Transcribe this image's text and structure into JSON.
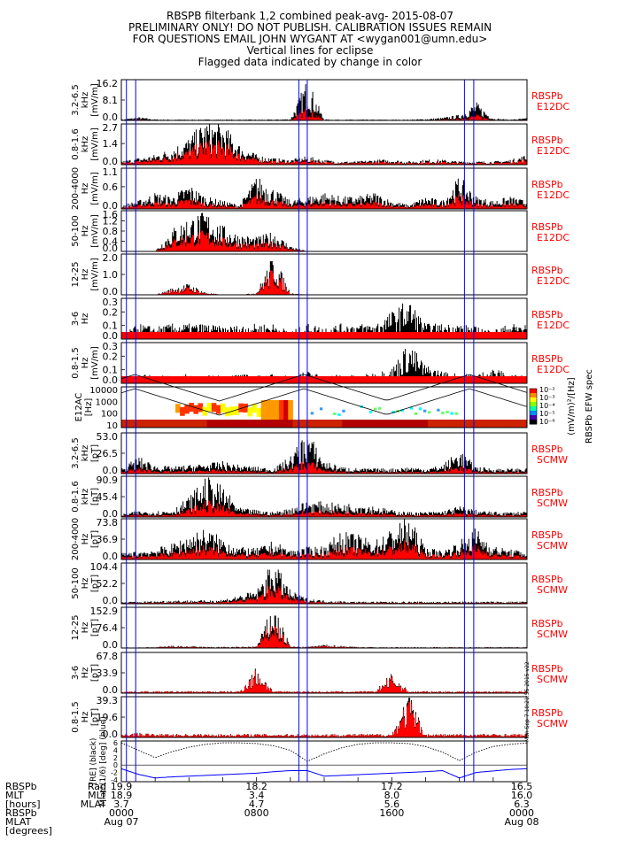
{
  "header": {
    "lines": [
      "RBSPB filterbank 1,2 combined peak-avg- 2015-08-07",
      "PRELIMINARY ONLY! DO NOT PUBLISH. CALIBRATION ISSUES REMAIN",
      "FOR QUESTIONS EMAIL JOHN WYGANT AT <wygan001@umn.edu>",
      "Vertical lines for eclipse",
      "Flagged data indicated by change in color"
    ]
  },
  "colors": {
    "signal": "#000000",
    "flagged": "#ff0000",
    "eclipse": "#0000ff",
    "label_red": "#ff0000",
    "mlat_trace": "#0000ff"
  },
  "eclipse_hours": [
    0.3,
    0.85,
    10.5,
    11.0,
    20.3,
    20.85
  ],
  "chart_data": [
    {
      "type": "line",
      "id": "e1",
      "ylabel": [
        "3.2-6.5",
        "kHz",
        "[mV/m]"
      ],
      "ticks": [
        "16.2",
        "8.1",
        "0.0"
      ],
      "right": [
        "RBSPb",
        "E12DC"
      ],
      "ylim": [
        0,
        16.2
      ],
      "x": [
        0,
        1,
        2,
        3,
        4,
        5,
        6,
        7,
        8,
        9,
        10,
        11,
        12,
        13,
        14,
        15,
        16,
        17,
        18,
        19,
        20,
        21,
        22,
        23,
        24
      ],
      "values": [
        0.3,
        1.2,
        0.4,
        0.3,
        0.3,
        0.3,
        0.3,
        0.3,
        0.3,
        0.3,
        0.5,
        15.0,
        0.4,
        0.3,
        0.3,
        0.3,
        0.3,
        0.3,
        0.5,
        1.0,
        2.0,
        6.5,
        0.8,
        0.3,
        0.8
      ],
      "flag": 0.05
    },
    {
      "type": "line",
      "id": "e2",
      "ylabel": [
        "0.8-1.6",
        "kHz",
        "[mV/m]"
      ],
      "ticks": [
        "2.7",
        "1.4",
        "0.0"
      ],
      "right": [
        "RBSPb",
        "E12DC"
      ],
      "ylim": [
        0,
        2.7
      ],
      "x": [
        0,
        1,
        2,
        3,
        4,
        5,
        6,
        7,
        8,
        9,
        10,
        11,
        12,
        13,
        14,
        15,
        16,
        17,
        18,
        19,
        20,
        21,
        22,
        23,
        24
      ],
      "values": [
        0.2,
        0.4,
        0.6,
        1.0,
        1.6,
        2.6,
        2.4,
        1.2,
        0.6,
        0.4,
        0.3,
        0.5,
        0.3,
        0.2,
        0.2,
        0.3,
        0.3,
        0.2,
        0.3,
        0.3,
        0.2,
        0.2,
        0.2,
        0.3,
        0.6
      ],
      "flag": 0.5
    },
    {
      "type": "line",
      "id": "e3",
      "ylabel": [
        "200-4000",
        "Hz",
        "[mV/m]"
      ],
      "ticks": [
        "1.1",
        "0.6",
        "0.0"
      ],
      "right": [
        "RBSPb",
        "E12DC"
      ],
      "ylim": [
        0,
        1.1
      ],
      "x": [
        0,
        1,
        2,
        3,
        4,
        5,
        6,
        7,
        8,
        9,
        10,
        11,
        12,
        13,
        14,
        15,
        16,
        17,
        18,
        19,
        20,
        21,
        22,
        23,
        24
      ],
      "values": [
        0.1,
        0.2,
        0.4,
        0.3,
        0.6,
        0.3,
        0.2,
        0.1,
        0.8,
        0.5,
        0.2,
        0.3,
        0.4,
        0.3,
        0.3,
        0.4,
        0.2,
        0.1,
        0.3,
        0.2,
        0.8,
        0.3,
        0.2,
        0.3,
        0.2
      ],
      "flag": 0.3
    },
    {
      "type": "line",
      "id": "e4",
      "ylabel": [
        "50-100",
        "Hz",
        "[mV/m]"
      ],
      "ticks": [
        "1.6",
        "1.2",
        "0.8",
        "0.4",
        "0.0"
      ],
      "right": [
        "RBSPb",
        "E12DC"
      ],
      "ylim": [
        0,
        1.6
      ],
      "x": [
        0,
        1,
        2,
        3,
        4,
        5,
        6,
        7,
        8,
        9,
        10,
        11,
        12,
        13,
        14,
        15,
        16,
        17,
        18,
        19,
        20,
        21,
        22,
        23,
        24
      ],
      "values": [
        0.0,
        0.0,
        0.0,
        0.8,
        1.2,
        1.4,
        0.9,
        0.6,
        0.5,
        0.7,
        0.2,
        0.0,
        0.0,
        0.0,
        0.0,
        0.0,
        0.0,
        0.0,
        0.0,
        0.0,
        0.0,
        0.0,
        0.0,
        0.0,
        0.0
      ],
      "flag": 0.4
    },
    {
      "type": "line",
      "id": "e5",
      "ylabel": [
        "12-25",
        "Hz",
        "[mV/m]"
      ],
      "ticks": [
        "2.0",
        "1.0",
        "0.0"
      ],
      "right": [
        "RBSPb",
        "E12DC"
      ],
      "ylim": [
        0,
        2.0
      ],
      "x": [
        0,
        1,
        2,
        3,
        4,
        5,
        6,
        7,
        8,
        9,
        10,
        11,
        12,
        13,
        14,
        15,
        16,
        17,
        18,
        19,
        20,
        21,
        22,
        23,
        24
      ],
      "values": [
        0.0,
        0.0,
        0.0,
        0.3,
        0.5,
        0.1,
        0.0,
        0.0,
        0.1,
        1.8,
        0.1,
        0.0,
        0.0,
        0.0,
        0.0,
        0.0,
        0.0,
        0.0,
        0.0,
        0.0,
        0.0,
        0.0,
        0.0,
        0.0,
        0.0
      ],
      "flag": 0.7
    },
    {
      "type": "line",
      "id": "e6",
      "ylabel": [
        "3-6",
        "Hz"
      ],
      "ticks": [
        "0.3",
        "0.2",
        "0.1",
        "0.0"
      ],
      "right": [
        "RBSPb",
        "E12DC"
      ],
      "ylim": [
        0,
        0.3
      ],
      "x": [
        0,
        1,
        2,
        3,
        4,
        5,
        6,
        7,
        8,
        9,
        10,
        11,
        12,
        13,
        14,
        15,
        16,
        17,
        18,
        19,
        20,
        21,
        22,
        23,
        24
      ],
      "values": [
        0.02,
        0.1,
        0.08,
        0.1,
        0.1,
        0.1,
        0.08,
        0.09,
        0.1,
        0.1,
        0.05,
        0.1,
        0.08,
        0.1,
        0.1,
        0.1,
        0.18,
        0.26,
        0.1,
        0.1,
        0.1,
        0.08,
        0.06,
        0.1,
        0.1
      ],
      "flag": 0.0
    },
    {
      "type": "line",
      "id": "e7",
      "ylabel": [
        "0.8-1.5",
        "Hz",
        "[mV/m]"
      ],
      "ticks": [
        "0.3",
        "0.2",
        "0.1",
        "0.0"
      ],
      "right": [
        "RBSPb",
        "E12DC"
      ],
      "ylim": [
        0,
        0.3
      ],
      "x": [
        0,
        1,
        2,
        3,
        4,
        5,
        6,
        7,
        8,
        9,
        10,
        11,
        12,
        13,
        14,
        15,
        16,
        17,
        18,
        19,
        20,
        21,
        22,
        23,
        24
      ],
      "values": [
        0.02,
        0.06,
        0.05,
        0.05,
        0.06,
        0.05,
        0.05,
        0.06,
        0.05,
        0.06,
        0.05,
        0.08,
        0.05,
        0.06,
        0.05,
        0.07,
        0.1,
        0.27,
        0.12,
        0.08,
        0.06,
        0.06,
        0.1,
        0.06,
        0.05
      ],
      "flag": 0.0
    },
    {
      "type": "heatmap",
      "id": "spec",
      "ylabel": [
        "E12AC",
        "[Hz]"
      ],
      "ticks": [
        "10000",
        "1000",
        "100",
        "10"
      ],
      "colorbar_ticks": [
        "10⁻²",
        "10⁻³",
        "10⁻⁴",
        "10⁻⁵",
        "10⁻⁶"
      ],
      "colorbar_label": "(mV/m)²/[Hz]",
      "colorbar_title": "RBSPb EFW spec"
    },
    {
      "type": "line",
      "id": "b1",
      "ylabel": [
        "3.2-6.5",
        "kHz",
        "[pT]"
      ],
      "ticks": [
        "53.0",
        "26.5",
        "0.0"
      ],
      "right": [
        "RBSPb",
        "SCMW"
      ],
      "ylim": [
        0,
        53.0
      ],
      "x": [
        0,
        1,
        2,
        3,
        4,
        5,
        6,
        7,
        8,
        9,
        10,
        11,
        12,
        13,
        14,
        15,
        16,
        17,
        18,
        19,
        20,
        21,
        22,
        23,
        24
      ],
      "values": [
        6,
        20,
        10,
        8,
        10,
        12,
        14,
        10,
        8,
        6,
        20,
        50,
        15,
        8,
        6,
        6,
        6,
        8,
        6,
        10,
        28,
        8,
        6,
        6,
        6
      ],
      "flag": 0.1
    },
    {
      "type": "line",
      "id": "b2",
      "ylabel": [
        "0.8-1.6",
        "kHz",
        "[pT]"
      ],
      "ticks": [
        "90.9",
        "45.4",
        "0.0"
      ],
      "right": [
        "RBSPb",
        "SCMW"
      ],
      "ylim": [
        0,
        90.9
      ],
      "x": [
        0,
        1,
        2,
        3,
        4,
        5,
        6,
        7,
        8,
        9,
        10,
        11,
        12,
        13,
        14,
        15,
        16,
        17,
        18,
        19,
        20,
        21,
        22,
        23,
        24
      ],
      "values": [
        6,
        12,
        12,
        14,
        40,
        80,
        60,
        18,
        14,
        10,
        18,
        32,
        30,
        26,
        28,
        22,
        14,
        10,
        10,
        12,
        22,
        14,
        10,
        10,
        12
      ],
      "flag": 0.2
    },
    {
      "type": "line",
      "id": "b3",
      "ylabel": [
        "200-4000",
        "Hz",
        "[pT]"
      ],
      "ticks": [
        "73.8",
        "36.9",
        "0.0"
      ],
      "right": [
        "RBSPb",
        "SCMW"
      ],
      "ylim": [
        0,
        73.8
      ],
      "x": [
        0,
        1,
        2,
        3,
        4,
        5,
        6,
        7,
        8,
        9,
        10,
        11,
        12,
        13,
        14,
        15,
        16,
        17,
        18,
        19,
        20,
        21,
        22,
        23,
        24
      ],
      "values": [
        10,
        14,
        18,
        25,
        40,
        50,
        35,
        20,
        18,
        30,
        15,
        20,
        22,
        45,
        40,
        30,
        50,
        70,
        20,
        14,
        30,
        52,
        22,
        16,
        14
      ],
      "flag": 0.3
    },
    {
      "type": "line",
      "id": "b4",
      "ylabel": [
        "50-100",
        "Hz",
        "[pT]"
      ],
      "ticks": [
        "104.4",
        "52.2",
        "0.0"
      ],
      "right": [
        "RBSPb",
        "SCMW"
      ],
      "ylim": [
        0,
        104.4
      ],
      "x": [
        0,
        1,
        2,
        3,
        4,
        5,
        6,
        7,
        8,
        9,
        10,
        11,
        12,
        13,
        14,
        15,
        16,
        17,
        18,
        19,
        20,
        21,
        22,
        23,
        24
      ],
      "values": [
        4,
        5,
        6,
        8,
        8,
        8,
        10,
        20,
        30,
        100,
        30,
        12,
        8,
        6,
        5,
        5,
        5,
        5,
        5,
        5,
        5,
        5,
        5,
        5,
        5
      ],
      "flag": 0.35
    },
    {
      "type": "line",
      "id": "b5",
      "ylabel": [
        "12-25",
        "Hz",
        "[pT]"
      ],
      "ticks": [
        "152.9",
        "76.4",
        "0.0"
      ],
      "right": [
        "RBSPb",
        "SCMW"
      ],
      "ylim": [
        0,
        152.9
      ],
      "x": [
        0,
        1,
        2,
        3,
        4,
        5,
        6,
        7,
        8,
        9,
        10,
        11,
        12,
        13,
        14,
        15,
        16,
        17,
        18,
        19,
        20,
        21,
        22,
        23,
        24
      ],
      "values": [
        2,
        2,
        3,
        8,
        6,
        4,
        4,
        4,
        6,
        150,
        6,
        4,
        12,
        8,
        4,
        3,
        3,
        3,
        3,
        3,
        3,
        3,
        3,
        3,
        3
      ],
      "flag": 0.6
    },
    {
      "type": "line",
      "id": "b6",
      "ylabel": [
        "3-6",
        "Hz",
        "[pT]"
      ],
      "ticks": [
        "67.8",
        "33.9",
        "0.0"
      ],
      "right": [
        "RBSPb",
        "SCMW"
      ],
      "ylim": [
        0,
        67.8
      ],
      "x": [
        0,
        1,
        2,
        3,
        4,
        5,
        6,
        7,
        8,
        9,
        10,
        11,
        12,
        13,
        14,
        15,
        16,
        17,
        18,
        19,
        20,
        21,
        22,
        23,
        24
      ],
      "values": [
        3,
        3,
        3,
        3,
        3,
        3,
        3,
        3,
        40,
        3,
        3,
        3,
        3,
        3,
        3,
        3,
        30,
        3,
        3,
        3,
        3,
        3,
        3,
        3,
        3
      ],
      "flag": 1.0
    },
    {
      "type": "line",
      "id": "b7",
      "ylabel": [
        "0.8-1.5",
        "Hz",
        "[pT]"
      ],
      "ticks": [
        "39.3",
        "19.6",
        "0.0"
      ],
      "right": [
        "RBSPb",
        "SCMW"
      ],
      "ylim": [
        0,
        39.3
      ],
      "x": [
        0,
        1,
        2,
        3,
        4,
        5,
        6,
        7,
        8,
        9,
        10,
        11,
        12,
        13,
        14,
        15,
        16,
        17,
        18,
        19,
        20,
        21,
        22,
        23,
        24
      ],
      "values": [
        3,
        4,
        3,
        3,
        3,
        3,
        3,
        3,
        3,
        3,
        3,
        3,
        3,
        3,
        3,
        3,
        3,
        38,
        3,
        3,
        3,
        3,
        3,
        3,
        3
      ],
      "flag": 1.0
    },
    {
      "type": "line",
      "id": "orbit",
      "ylabel_left": "[RE] (black)",
      "ylabel_right": "Mlat*(1/6) [deg] (blue)",
      "ticks": [
        "6",
        "4",
        "2",
        "0",
        "-2",
        "-4"
      ],
      "ylim": [
        -4.5,
        6.5
      ],
      "x": [
        0,
        1,
        2,
        3,
        4,
        5,
        6,
        7,
        8,
        9,
        10,
        11,
        12,
        13,
        14,
        15,
        16,
        17,
        18,
        19,
        20,
        21,
        22,
        23,
        24
      ],
      "radius": [
        6,
        4,
        2,
        3.6,
        4.8,
        5.6,
        6,
        6,
        5.8,
        5.2,
        4,
        1,
        3,
        4.6,
        5.6,
        6,
        6,
        5.8,
        5,
        3.5,
        1.2,
        3.5,
        5,
        5.6,
        6
      ],
      "mlat_scaled": [
        -1,
        -2.5,
        -3.5,
        -3.2,
        -3,
        -2.8,
        -2.6,
        -2.4,
        -2.2,
        -1.8,
        -1.5,
        -1.5,
        -3,
        -2.8,
        -2.6,
        -2.4,
        -2.2,
        -2.0,
        -1.8,
        -1.5,
        -3.5,
        -2,
        -1.6,
        -1.2,
        -1.0
      ]
    }
  ],
  "footer": {
    "stamp": "Mon Sep 7 10:21:55 2015 v22",
    "row_labels": [
      "RBSPb",
      "Rad",
      "MLT",
      "[hours]",
      "RBSPb",
      "MLAT",
      "[degrees]"
    ],
    "left_labels": [
      "RBSPb",
      "MLT",
      "[hours]",
      "RBSPb",
      "MLAT",
      "[degrees]"
    ],
    "axis_labels": [
      "Rad",
      "MLT",
      "MLAT"
    ],
    "columns": [
      {
        "rad": "19.9",
        "mlt": "18.9",
        "mlat": "3.7",
        "time": "0000",
        "date": "Aug 07"
      },
      {
        "rad": "18.2",
        "mlt": "3.4",
        "mlat": "4.7",
        "time": "0800",
        "date": ""
      },
      {
        "rad": "17.2",
        "mlt": "8.0",
        "mlat": "5.6",
        "time": "1600",
        "date": ""
      },
      {
        "rad": "16.5",
        "mlt": "16.0",
        "mlat": "6.3",
        "time": "0000",
        "date": "Aug 08"
      }
    ]
  }
}
